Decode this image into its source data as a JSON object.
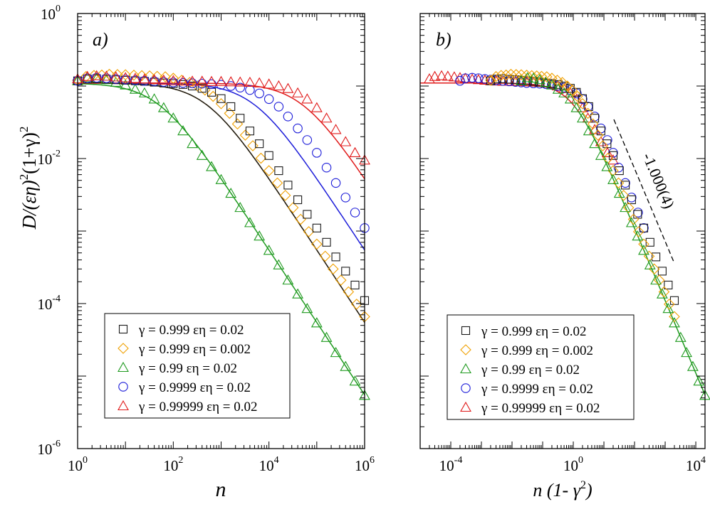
{
  "figure": {
    "ylabel_main": "D/(εη)",
    "ylabel_sup1": "2",
    "ylabel_mid": "(1+γ)",
    "ylabel_sup2": "2",
    "colors": {
      "black": "#1a1a1a",
      "orange": "#f0a000",
      "green": "#1f9a1f",
      "blue": "#1c1cd9",
      "red": "#e01a1a"
    }
  },
  "chart_data": [
    {
      "type": "scatter",
      "panel_label": "a)",
      "xlabel": "n",
      "xscale": "log",
      "yscale": "log",
      "xlim": [
        1,
        1000000
      ],
      "ylim": [
        1e-06,
        1
      ],
      "x_ticks": [
        {
          "base": "10",
          "exp": "0",
          "value": 1
        },
        {
          "base": "10",
          "exp": "2",
          "value": 100
        },
        {
          "base": "10",
          "exp": "4",
          "value": 10000
        },
        {
          "base": "10",
          "exp": "6",
          "value": 1000000
        }
      ],
      "y_ticks": [
        {
          "base": "10",
          "exp": "-6",
          "value": 1e-06
        },
        {
          "base": "10",
          "exp": "-4",
          "value": 0.0001
        },
        {
          "base": "10",
          "exp": "-2",
          "value": 0.01
        },
        {
          "base": "10",
          "exp": "0",
          "value": 1
        }
      ],
      "legend": [
        {
          "marker": "square",
          "color": "#1a1a1a",
          "label": "γ = 0.999  εη  = 0.02"
        },
        {
          "marker": "diamond",
          "color": "#f0a000",
          "label": "γ = 0.999  εη  = 0.002"
        },
        {
          "marker": "triangle",
          "color": "#1f9a1f",
          "label": "γ = 0.99  εη  = 0.02"
        },
        {
          "marker": "circle",
          "color": "#1c1cd9",
          "label": "γ = 0.9999  εη  = 0.02"
        },
        {
          "marker": "triangle",
          "color": "#e01a1a",
          "label": "γ = 0.99999  εη  = 0.02"
        }
      ],
      "series": [
        {
          "name": "γ = 0.99  εη  = 0.02",
          "marker": "triangle",
          "color": "#1f9a1f",
          "fit_knee": 50,
          "fit_level": 0.11,
          "x": [
            1,
            1.6,
            2.5,
            4,
            6.3,
            10,
            16,
            25,
            40,
            63,
            100,
            160,
            250,
            400,
            630,
            1000,
            1600,
            2500,
            4000,
            6300,
            10000,
            16000,
            25000,
            40000,
            63000,
            100000,
            160000,
            250000,
            400000,
            630000,
            1000000
          ],
          "y": [
            0.118,
            0.13,
            0.128,
            0.122,
            0.112,
            0.103,
            0.09,
            0.08,
            0.066,
            0.05,
            0.036,
            0.024,
            0.016,
            0.011,
            0.0077,
            0.0051,
            0.0033,
            0.0021,
            0.0013,
            0.00085,
            0.00054,
            0.00034,
            0.00021,
            0.000135,
            8.5e-05,
            5.4e-05,
            3.4e-05,
            2.1e-05,
            1.35e-05,
            8.5e-06,
            5.4e-06
          ]
        },
        {
          "name": "γ = 0.999  εη  = 0.002",
          "marker": "diamond",
          "color": "#f0a000",
          "fit_knee": 500,
          "fit_level": 0.11,
          "x": [
            1,
            1.5,
            2.2,
            3.2,
            4.6,
            6.8,
            10,
            15,
            22,
            32,
            46,
            68,
            100,
            150,
            220,
            320,
            460,
            680,
            1000,
            1500,
            2200,
            3200,
            4600,
            6800,
            10000,
            15000,
            22000,
            32000,
            46000,
            68000,
            100000,
            150000,
            220000,
            320000,
            460000,
            680000,
            1000000
          ],
          "y": [
            0.12,
            0.135,
            0.14,
            0.142,
            0.145,
            0.144,
            0.143,
            0.141,
            0.139,
            0.138,
            0.136,
            0.134,
            0.128,
            0.12,
            0.112,
            0.1,
            0.088,
            0.072,
            0.057,
            0.042,
            0.03,
            0.021,
            0.015,
            0.0101,
            0.0068,
            0.0046,
            0.0031,
            0.0021,
            0.00145,
            0.00098,
            0.00066,
            0.00045,
            0.0003,
            0.00021,
            0.000145,
            9.8e-05,
            6.6e-05
          ]
        },
        {
          "name": "γ = 0.999  εη  = 0.02",
          "marker": "square",
          "color": "#1a1a1a",
          "fit_knee": 500,
          "fit_level": 0.11,
          "x": [
            1,
            1.6,
            2.5,
            4,
            6.3,
            10,
            16,
            25,
            40,
            63,
            100,
            160,
            250,
            400,
            630,
            1000,
            1600,
            2500,
            4000,
            6300,
            10000,
            16000,
            25000,
            40000,
            63000,
            100000,
            160000,
            250000,
            400000,
            630000,
            1000000
          ],
          "y": [
            0.118,
            0.125,
            0.126,
            0.124,
            0.122,
            0.12,
            0.118,
            0.116,
            0.113,
            0.11,
            0.108,
            0.105,
            0.1,
            0.093,
            0.082,
            0.067,
            0.052,
            0.036,
            0.024,
            0.016,
            0.011,
            0.0068,
            0.0043,
            0.0027,
            0.0017,
            0.0011,
            0.0007,
            0.00044,
            0.00028,
            0.00018,
            0.00011
          ]
        },
        {
          "name": "γ = 0.9999  εη  = 0.02",
          "marker": "circle",
          "color": "#1c1cd9",
          "fit_knee": 5000,
          "fit_level": 0.11,
          "x": [
            1,
            1.6,
            2.5,
            4,
            6.3,
            10,
            16,
            25,
            40,
            63,
            100,
            160,
            250,
            400,
            630,
            1000,
            1600,
            2500,
            4000,
            6300,
            10000,
            16000,
            25000,
            40000,
            63000,
            100000,
            160000,
            250000,
            400000,
            630000,
            1000000
          ],
          "y": [
            0.118,
            0.128,
            0.13,
            0.128,
            0.125,
            0.123,
            0.12,
            0.118,
            0.116,
            0.114,
            0.112,
            0.11,
            0.109,
            0.108,
            0.106,
            0.104,
            0.1,
            0.095,
            0.088,
            0.079,
            0.066,
            0.052,
            0.038,
            0.026,
            0.018,
            0.012,
            0.0075,
            0.0046,
            0.0029,
            0.0018,
            0.0011
          ]
        },
        {
          "name": "γ = 0.99999  εη  = 0.02",
          "marker": "triangle",
          "color": "#e01a1a",
          "fit_knee": 50000,
          "fit_level": 0.11,
          "x": [
            1,
            1.6,
            2.5,
            4,
            6.3,
            10,
            16,
            25,
            40,
            63,
            100,
            160,
            250,
            400,
            630,
            1000,
            1600,
            2500,
            4000,
            6300,
            10000,
            16000,
            25000,
            40000,
            63000,
            100000,
            160000,
            250000,
            400000,
            630000,
            1000000
          ],
          "y": [
            0.125,
            0.135,
            0.138,
            0.136,
            0.133,
            0.13,
            0.127,
            0.124,
            0.122,
            0.12,
            0.118,
            0.117,
            0.116,
            0.116,
            0.115,
            0.115,
            0.114,
            0.113,
            0.112,
            0.11,
            0.106,
            0.1,
            0.092,
            0.08,
            0.066,
            0.05,
            0.036,
            0.025,
            0.017,
            0.012,
            0.0095
          ]
        }
      ]
    },
    {
      "type": "scatter",
      "panel_label": "b)",
      "xlabel": "n (1- γ",
      "xlabel_sup": "2",
      "xlabel_close": ")",
      "xscale": "log",
      "yscale": "log",
      "xlim": [
        1e-05,
        20000
      ],
      "ylim": [
        1e-06,
        1
      ],
      "x_ticks": [
        {
          "base": "10",
          "exp": "-4",
          "value": 0.0001
        },
        {
          "base": "10",
          "exp": "0",
          "value": 1
        },
        {
          "base": "10",
          "exp": "4",
          "value": 10000
        }
      ],
      "y_ticks": [
        {
          "value": 1e-06
        },
        {
          "value": 0.0001
        },
        {
          "value": 0.01
        },
        {
          "value": 1
        }
      ],
      "annotation": {
        "text": "-1.000(4)",
        "slope": -1
      },
      "legend": [
        {
          "marker": "square",
          "color": "#1a1a1a",
          "label": "γ = 0.999  εη  = 0.02"
        },
        {
          "marker": "diamond",
          "color": "#f0a000",
          "label": "γ = 0.999  εη  = 0.002"
        },
        {
          "marker": "triangle",
          "color": "#1f9a1f",
          "label": "γ = 0.99  εη  = 0.02"
        },
        {
          "marker": "circle",
          "color": "#1c1cd9",
          "label": "γ = 0.9999  εη  = 0.02"
        },
        {
          "marker": "triangle",
          "color": "#e01a1a",
          "label": "γ = 0.99999  εη  = 0.02"
        }
      ],
      "fit": {
        "knee": 1,
        "level": 0.11,
        "color_low": "#e01a1a",
        "color_high": "#1f9a1f"
      },
      "series": [
        {
          "name": "γ = 0.99999  εη  = 0.02",
          "marker": "triangle",
          "color": "#e01a1a",
          "x": [
            2e-05,
            3e-05,
            5e-05,
            8e-05,
            0.00013,
            0.0002,
            0.0003,
            0.0005,
            0.0008,
            0.0013,
            0.002,
            0.003,
            0.005,
            0.008,
            0.013,
            0.02,
            0.03,
            0.05,
            0.08,
            0.13,
            0.2,
            0.3,
            0.5,
            0.8,
            1.3,
            2,
            3,
            5,
            8,
            13,
            20
          ],
          "y": [
            0.125,
            0.135,
            0.138,
            0.136,
            0.133,
            0.13,
            0.127,
            0.124,
            0.122,
            0.12,
            0.118,
            0.117,
            0.116,
            0.116,
            0.115,
            0.115,
            0.114,
            0.113,
            0.112,
            0.11,
            0.106,
            0.1,
            0.092,
            0.08,
            0.066,
            0.05,
            0.036,
            0.025,
            0.017,
            0.012,
            0.0095
          ]
        },
        {
          "name": "γ = 0.9999  εη  = 0.02",
          "marker": "circle",
          "color": "#1c1cd9",
          "x": [
            0.0002,
            0.0003,
            0.0005,
            0.0008,
            0.0013,
            0.002,
            0.003,
            0.005,
            0.008,
            0.013,
            0.02,
            0.03,
            0.05,
            0.08,
            0.13,
            0.2,
            0.3,
            0.5,
            0.8,
            1.3,
            2,
            3,
            5,
            8,
            13,
            20,
            30,
            50,
            80,
            130,
            200
          ],
          "y": [
            0.118,
            0.128,
            0.13,
            0.128,
            0.125,
            0.123,
            0.12,
            0.118,
            0.116,
            0.114,
            0.112,
            0.11,
            0.109,
            0.108,
            0.106,
            0.104,
            0.1,
            0.095,
            0.088,
            0.079,
            0.066,
            0.052,
            0.038,
            0.026,
            0.018,
            0.012,
            0.0075,
            0.0046,
            0.0029,
            0.0018,
            0.0011
          ]
        },
        {
          "name": "γ = 0.999  εη  = 0.02",
          "marker": "square",
          "color": "#1a1a1a",
          "x": [
            0.002,
            0.0032,
            0.005,
            0.008,
            0.0126,
            0.02,
            0.032,
            0.05,
            0.08,
            0.126,
            0.2,
            0.32,
            0.5,
            0.8,
            1.26,
            2,
            3.2,
            5,
            8,
            12.6,
            20,
            32,
            50,
            80,
            126,
            200,
            320,
            500,
            800,
            1260,
            2000
          ],
          "y": [
            0.118,
            0.125,
            0.126,
            0.124,
            0.122,
            0.12,
            0.118,
            0.116,
            0.113,
            0.11,
            0.108,
            0.105,
            0.1,
            0.093,
            0.082,
            0.067,
            0.052,
            0.036,
            0.024,
            0.016,
            0.011,
            0.0068,
            0.0043,
            0.0027,
            0.0017,
            0.0011,
            0.0007,
            0.00044,
            0.00028,
            0.00018,
            0.00011
          ]
        },
        {
          "name": "γ = 0.999  εη  = 0.002",
          "marker": "diamond",
          "color": "#f0a000",
          "x": [
            0.002,
            0.003,
            0.0044,
            0.0064,
            0.0092,
            0.0136,
            0.02,
            0.03,
            0.044,
            0.064,
            0.092,
            0.136,
            0.2,
            0.3,
            0.44,
            0.64,
            0.92,
            1.36,
            2,
            3,
            4.4,
            6.4,
            9.2,
            13.6,
            20,
            30,
            44,
            64,
            92,
            136,
            200,
            300,
            440,
            640,
            920,
            1360,
            2000
          ],
          "y": [
            0.12,
            0.135,
            0.14,
            0.142,
            0.145,
            0.144,
            0.143,
            0.141,
            0.139,
            0.138,
            0.136,
            0.134,
            0.128,
            0.12,
            0.112,
            0.1,
            0.088,
            0.072,
            0.057,
            0.042,
            0.03,
            0.021,
            0.015,
            0.0101,
            0.0068,
            0.0046,
            0.0031,
            0.0021,
            0.00145,
            0.00098,
            0.00066,
            0.00045,
            0.0003,
            0.00021,
            0.000145,
            9.8e-05,
            6.6e-05
          ]
        },
        {
          "name": "γ = 0.99  εη  = 0.02",
          "marker": "triangle",
          "color": "#1f9a1f",
          "x": [
            0.02,
            0.032,
            0.05,
            0.08,
            0.126,
            0.2,
            0.32,
            0.5,
            0.8,
            1.26,
            2,
            3.2,
            5,
            8,
            12.6,
            20,
            32,
            50,
            80,
            126,
            200,
            320,
            500,
            800,
            1260,
            2000,
            3200,
            5000,
            8000,
            12600,
            20000
          ],
          "y": [
            0.118,
            0.13,
            0.128,
            0.122,
            0.112,
            0.103,
            0.09,
            0.08,
            0.066,
            0.05,
            0.036,
            0.024,
            0.016,
            0.011,
            0.0077,
            0.0051,
            0.0033,
            0.0021,
            0.0013,
            0.00085,
            0.00054,
            0.00034,
            0.00021,
            0.000135,
            8.5e-05,
            5.4e-05,
            3.4e-05,
            2.1e-05,
            1.35e-05,
            8.5e-06,
            5.4e-06
          ]
        }
      ]
    }
  ]
}
